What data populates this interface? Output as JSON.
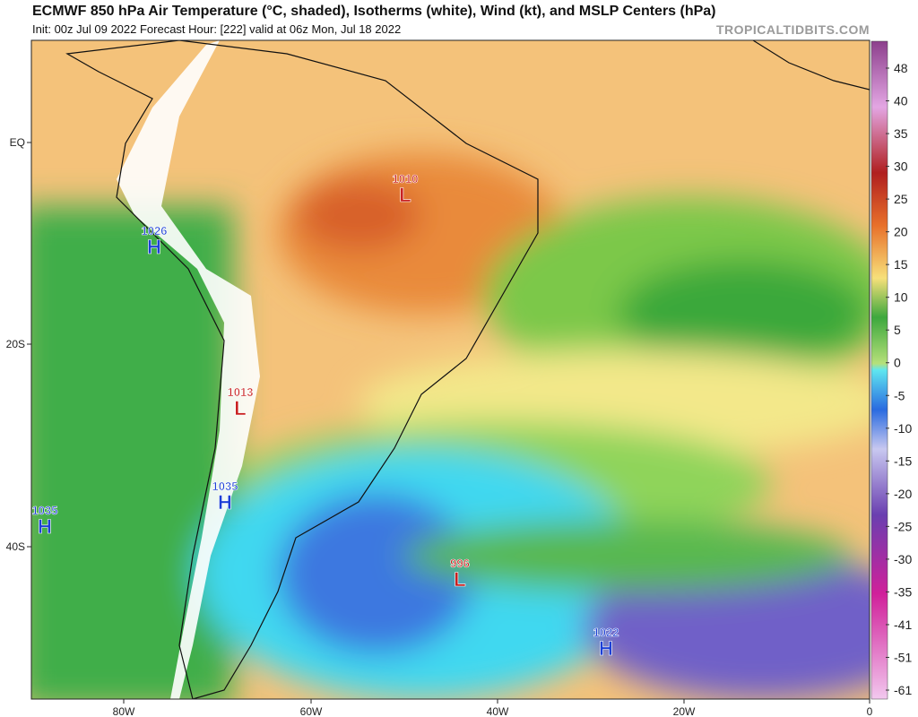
{
  "header": {
    "title": "ECMWF 850 hPa Air Temperature (°C, shaded), Isotherms (white), Wind (kt), and MSLP Centers (hPa)",
    "subtitle": "Init: 00z Jul 09 2022   Forecast Hour: [222]   valid at 06z Mon, Jul 18 2022",
    "watermark": "TROPICALTIDBITS.COM"
  },
  "map": {
    "lat_labels": [
      "EQ",
      "20S",
      "40S"
    ],
    "lon_labels": [
      "80W",
      "60W",
      "40W",
      "20W",
      "0"
    ],
    "pressure_centers": [
      {
        "value": "1010",
        "letter": "L"
      },
      {
        "value": "1026",
        "letter": "H"
      },
      {
        "value": "1013",
        "letter": "L"
      },
      {
        "value": "1035",
        "letter": "H"
      },
      {
        "value": "1035",
        "letter": "H"
      },
      {
        "value": "996",
        "letter": "L"
      },
      {
        "value": "1022",
        "letter": "H"
      }
    ]
  },
  "colorbar": {
    "labels": [
      "48",
      "40",
      "35",
      "30",
      "25",
      "20",
      "15",
      "10",
      "5",
      "0",
      "-5",
      "-10",
      "-15",
      "-20",
      "-25",
      "-30",
      "-35",
      "-41",
      "-51",
      "-61"
    ]
  }
}
